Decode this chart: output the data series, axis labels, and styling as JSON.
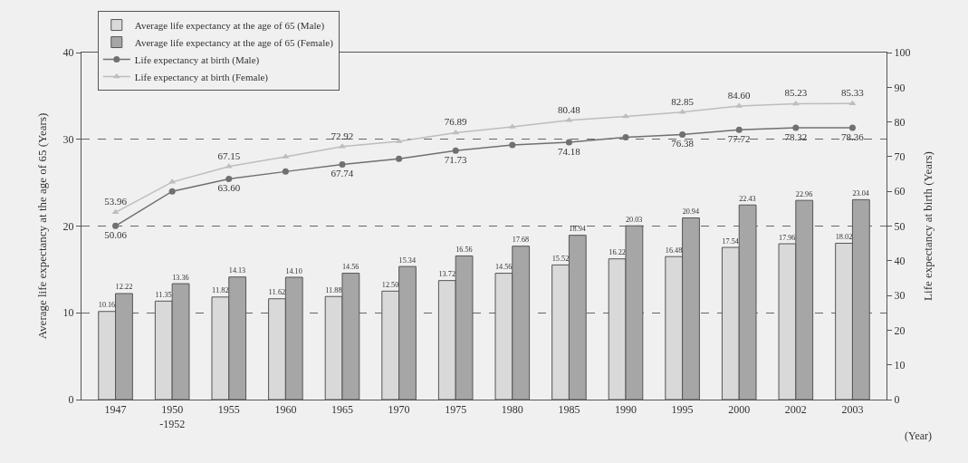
{
  "chart_data": {
    "type": "bar",
    "xlabel": "(Year)",
    "ylabel": "Average life expectancy at the age of 65 (Years)",
    "y2label": "Life expectancy at birth (Years)",
    "categories": [
      "1947",
      "1950\n-1952",
      "1955",
      "1960",
      "1965",
      "1970",
      "1975",
      "1980",
      "1985",
      "1990",
      "1995",
      "2000",
      "2002",
      "2003"
    ],
    "series": [
      {
        "name": "Average life expectancy at the age of 65 (Male)",
        "color": "#d9d9d9",
        "values": [
          10.16,
          11.35,
          11.82,
          11.62,
          11.88,
          12.5,
          13.72,
          14.56,
          15.52,
          16.22,
          16.48,
          17.54,
          17.96,
          18.02
        ],
        "value_labels": [
          "10.16",
          "11.35",
          "11.82",
          "11.62",
          "11.88",
          "12.50",
          "13.72",
          "14.56",
          "15.52",
          "16.22",
          "16.48",
          "17.54",
          "17.96",
          "18.02"
        ]
      },
      {
        "name": "Average life expectancy at the age of 65 (Female)",
        "color": "#a6a6a6",
        "values": [
          12.22,
          13.36,
          14.13,
          14.1,
          14.56,
          15.34,
          16.56,
          17.68,
          18.94,
          20.03,
          20.94,
          22.43,
          22.96,
          23.04
        ],
        "value_labels": [
          "12.22",
          "13.36",
          "14.13",
          "14.10",
          "14.56",
          "15.34",
          "16.56",
          "17.68",
          "18.94",
          "20.03",
          "20.94",
          "22.43",
          "22.96",
          "23.04"
        ]
      },
      {
        "name": "Life expectancy at birth (Male)",
        "type": "line",
        "axis": "y2",
        "marker": "circle",
        "color": "#707070",
        "values": [
          50.06,
          60.0,
          63.6,
          65.7,
          67.74,
          69.4,
          71.73,
          73.4,
          74.18,
          75.6,
          76.38,
          77.72,
          78.32,
          78.36
        ],
        "value_labels": [
          "50.06",
          null,
          "63.60",
          null,
          "67.74",
          null,
          "71.73",
          null,
          "74.18",
          null,
          "76.38",
          "77.72",
          "78.32",
          "78.36"
        ]
      },
      {
        "name": "Life expectancy at birth (Female)",
        "type": "line",
        "axis": "y2",
        "marker": "triangle",
        "color": "#bdbdbd",
        "values": [
          53.96,
          62.7,
          67.15,
          70.0,
          72.92,
          74.4,
          76.89,
          78.6,
          80.48,
          81.6,
          82.85,
          84.6,
          85.23,
          85.33
        ],
        "value_labels": [
          "53.96",
          null,
          "67.15",
          null,
          "72.92",
          null,
          "76.89",
          null,
          "80.48",
          null,
          "82.85",
          "84.60",
          "85.23",
          "85.33"
        ]
      }
    ],
    "ylim": [
      0,
      40
    ],
    "yticks": [
      0,
      10,
      20,
      30,
      40
    ],
    "y2lim": [
      0,
      100
    ],
    "y2ticks": [
      0,
      10,
      20,
      30,
      40,
      50,
      60,
      70,
      80,
      90,
      100
    ],
    "grid": "y",
    "legend": "top left",
    "line_style": "solid"
  }
}
